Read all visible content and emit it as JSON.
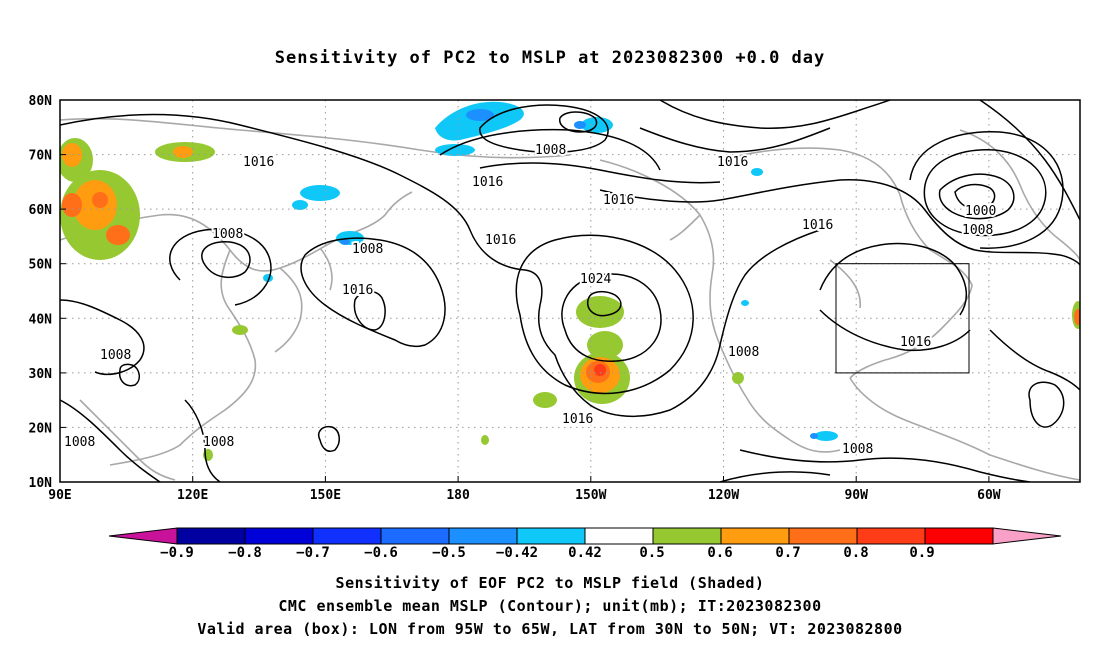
{
  "title": "Sensitivity of PC2 to MSLP at 2023082300 +0.0 day",
  "map": {
    "lat_labels": [
      "80N",
      "70N",
      "60N",
      "50N",
      "40N",
      "30N",
      "20N",
      "10N"
    ],
    "lon_labels": [
      "90E",
      "120E",
      "150E",
      "180",
      "150W",
      "120W",
      "90W",
      "60W"
    ],
    "contour_labels": [
      "1016",
      "1016",
      "1016",
      "1016",
      "1016",
      "1016",
      "1016",
      "1016",
      "1016",
      "1008",
      "1008",
      "1008",
      "1008",
      "1008",
      "1008",
      "1008",
      "1008",
      "1008",
      "1024",
      "1000"
    ],
    "validation_box": {
      "lon_range": "95W to 65W",
      "lat_range": "30N to 50N"
    }
  },
  "colorbar": {
    "ticks": [
      "−0.9",
      "−0.8",
      "−0.7",
      "−0.6",
      "−0.5",
      "−0.42",
      "0.42",
      "0.5",
      "0.6",
      "0.7",
      "0.8",
      "0.9"
    ],
    "colors": [
      "#c9129a",
      "#0000a0",
      "#0000d8",
      "#1030ff",
      "#1c6cff",
      "#1c90ff",
      "#10c8f8",
      "#ffffff",
      "#96c832",
      "#ff9c10",
      "#ff6e18",
      "#ff3c18",
      "#ff0000",
      "#f8a0c8"
    ]
  },
  "captions": [
    "Sensitivity of EOF PC2 to MSLP field (Shaded)",
    "CMC ensemble mean MSLP (Contour); unit(mb); IT:2023082300",
    "Valid area (box): LON from 95W to 65W, LAT from 30N to 50N; VT: 2023082800"
  ]
}
